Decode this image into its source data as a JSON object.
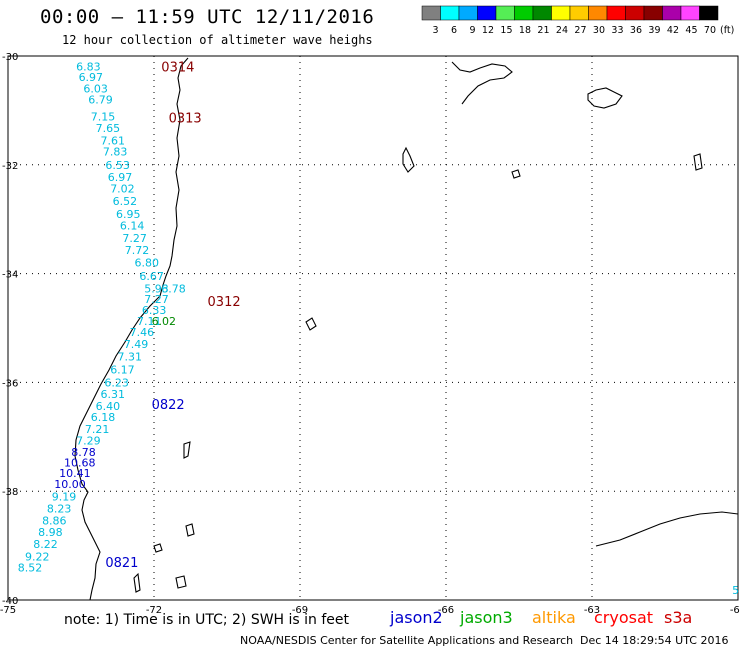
{
  "header": {
    "title": "00:00 – 11:59 UTC 12/11/2016",
    "subtitle": "12 hour collection of altimeter wave heighs"
  },
  "colorbar": {
    "unit": "(ft)",
    "bins": [
      {
        "label": "3",
        "color": "#808080"
      },
      {
        "label": "6",
        "color": "#00ffff"
      },
      {
        "label": "9",
        "color": "#00aaff"
      },
      {
        "label": "12",
        "color": "#0000ff"
      },
      {
        "label": "15",
        "color": "#55ee55"
      },
      {
        "label": "18",
        "color": "#00cc00"
      },
      {
        "label": "21",
        "color": "#008800"
      },
      {
        "label": "24",
        "color": "#ffff00"
      },
      {
        "label": "27",
        "color": "#ffcc00"
      },
      {
        "label": "30",
        "color": "#ff8800"
      },
      {
        "label": "33",
        "color": "#ff0000"
      },
      {
        "label": "36",
        "color": "#cc0000"
      },
      {
        "label": "39",
        "color": "#880000"
      },
      {
        "label": "42",
        "color": "#aa00aa"
      },
      {
        "label": "45",
        "color": "#ff44ff"
      },
      {
        "label": "70",
        "color": "#000000"
      }
    ]
  },
  "map": {
    "lon_range": [
      -75,
      -60
    ],
    "lat_range": [
      -40,
      -30
    ],
    "lat_ticks": [
      "-30",
      "-32",
      "-34",
      "-36",
      "-38",
      "-40"
    ],
    "lon_ticks": [
      "-75",
      "-72",
      "-69",
      "-66",
      "-63",
      "-60"
    ],
    "grid": "dotted"
  },
  "pass_labels": [
    {
      "text": "0314",
      "color": "#880000",
      "lon": -71.85,
      "lat": -30.19
    },
    {
      "text": "0313",
      "color": "#880000",
      "lon": -71.7,
      "lat": -31.13
    },
    {
      "text": "0312",
      "color": "#880000",
      "lon": -70.9,
      "lat": -34.5
    },
    {
      "text": "0822",
      "color": "#0000cc",
      "lon": -72.05,
      "lat": -36.4
    },
    {
      "text": "0821",
      "color": "#0000cc",
      "lon": -73.0,
      "lat": -39.3
    }
  ],
  "observations": [
    {
      "text": "6.83",
      "color": "#00bbdd",
      "lon": -73.6,
      "lat": -30.19
    },
    {
      "text": "6.97",
      "color": "#00bbdd",
      "lon": -73.55,
      "lat": -30.39
    },
    {
      "text": "6.03",
      "color": "#00bbdd",
      "lon": -73.45,
      "lat": -30.6
    },
    {
      "text": "6.79",
      "color": "#00bbdd",
      "lon": -73.35,
      "lat": -30.8
    },
    {
      "text": "7.15",
      "color": "#00bbdd",
      "lon": -73.3,
      "lat": -31.11
    },
    {
      "text": "7.65",
      "color": "#00bbdd",
      "lon": -73.2,
      "lat": -31.32
    },
    {
      "text": "7.61",
      "color": "#00bbdd",
      "lon": -73.1,
      "lat": -31.55
    },
    {
      "text": "7.83",
      "color": "#00bbdd",
      "lon": -73.05,
      "lat": -31.76
    },
    {
      "text": "6.53",
      "color": "#00bbdd",
      "lon": -73.0,
      "lat": -32.0
    },
    {
      "text": "6.97",
      "color": "#00bbdd",
      "lon": -72.95,
      "lat": -32.22
    },
    {
      "text": "7.02",
      "color": "#00bbdd",
      "lon": -72.9,
      "lat": -32.44
    },
    {
      "text": "6.52",
      "color": "#00bbdd",
      "lon": -72.85,
      "lat": -32.67
    },
    {
      "text": "6.95",
      "color": "#00bbdd",
      "lon": -72.78,
      "lat": -32.9
    },
    {
      "text": "6.14",
      "color": "#00bbdd",
      "lon": -72.7,
      "lat": -33.12
    },
    {
      "text": "7.27",
      "color": "#00bbdd",
      "lon": -72.65,
      "lat": -33.35
    },
    {
      "text": "7.72",
      "color": "#00bbdd",
      "lon": -72.6,
      "lat": -33.57
    },
    {
      "text": "6.80",
      "color": "#00bbdd",
      "lon": -72.4,
      "lat": -33.8
    },
    {
      "text": "6.67",
      "color": "#00bbdd",
      "lon": -72.3,
      "lat": -34.04
    },
    {
      "text": "5.93",
      "color": "#00bbdd",
      "lon": -72.2,
      "lat": -34.27
    },
    {
      "text": "6.78",
      "color": "#00bbdd",
      "lon": -71.85,
      "lat": -34.27
    },
    {
      "text": "7.27",
      "color": "#00bbdd",
      "lon": -72.2,
      "lat": -34.47
    },
    {
      "text": "6.33",
      "color": "#00bbdd",
      "lon": -72.25,
      "lat": -34.67
    },
    {
      "text": "7.11",
      "color": "#00bbdd",
      "lon": -72.35,
      "lat": -34.87
    },
    {
      "text": "6.02",
      "color": "#008800",
      "lon": -72.05,
      "lat": -34.87
    },
    {
      "text": "7.46",
      "color": "#00bbdd",
      "lon": -72.5,
      "lat": -35.07
    },
    {
      "text": "7.49",
      "color": "#00bbdd",
      "lon": -72.62,
      "lat": -35.29
    },
    {
      "text": "7.31",
      "color": "#00bbdd",
      "lon": -72.75,
      "lat": -35.52
    },
    {
      "text": "6.17",
      "color": "#00bbdd",
      "lon": -72.9,
      "lat": -35.76
    },
    {
      "text": "6.23",
      "color": "#00bbdd",
      "lon": -73.02,
      "lat": -36.0
    },
    {
      "text": "6.31",
      "color": "#00bbdd",
      "lon": -73.1,
      "lat": -36.21
    },
    {
      "text": "6.40",
      "color": "#00bbdd",
      "lon": -73.2,
      "lat": -36.43
    },
    {
      "text": "6.18",
      "color": "#00bbdd",
      "lon": -73.3,
      "lat": -36.64
    },
    {
      "text": "7.21",
      "color": "#00bbdd",
      "lon": -73.42,
      "lat": -36.86
    },
    {
      "text": "7.29",
      "color": "#00bbdd",
      "lon": -73.6,
      "lat": -37.07
    },
    {
      "text": "8.78",
      "color": "#0000cc",
      "lon": -73.7,
      "lat": -37.28
    },
    {
      "text": "10.68",
      "color": "#0000cc",
      "lon": -73.85,
      "lat": -37.47
    },
    {
      "text": "10.41",
      "color": "#0000cc",
      "lon": -73.95,
      "lat": -37.67
    },
    {
      "text": "10.00",
      "color": "#0000cc",
      "lon": -74.05,
      "lat": -37.87
    },
    {
      "text": "9.19",
      "color": "#00bbdd",
      "lon": -74.1,
      "lat": -38.1
    },
    {
      "text": "8.23",
      "color": "#00bbdd",
      "lon": -74.2,
      "lat": -38.32
    },
    {
      "text": "8.86",
      "color": "#00bbdd",
      "lon": -74.3,
      "lat": -38.54
    },
    {
      "text": "8.98",
      "color": "#00bbdd",
      "lon": -74.38,
      "lat": -38.75
    },
    {
      "text": "8.22",
      "color": "#00bbdd",
      "lon": -74.48,
      "lat": -38.97
    },
    {
      "text": "9.22",
      "color": "#00bbdd",
      "lon": -74.65,
      "lat": -39.2
    },
    {
      "text": "8.52",
      "color": "#00bbdd",
      "lon": -74.8,
      "lat": -39.4
    },
    {
      "text": "5",
      "color": "#00bbdd",
      "lon": -60.12,
      "lat": -39.82
    }
  ],
  "footer": {
    "note": "note: 1) Time is in UTC; 2) SWH is in feet",
    "legend": [
      {
        "name": "jason2",
        "color": "#0000cc"
      },
      {
        "name": "jason3",
        "color": "#00aa00"
      },
      {
        "name": "altika",
        "color": "#ff9900"
      },
      {
        "name": "cryosat",
        "color": "#ff0000"
      },
      {
        "name": "s3a",
        "color": "#cc0000"
      }
    ],
    "credit": "NOAA/NESDIS Center for Satellite Applications and Research",
    "timestamp": "Dec 14 18:29:54 UTC 2016"
  }
}
